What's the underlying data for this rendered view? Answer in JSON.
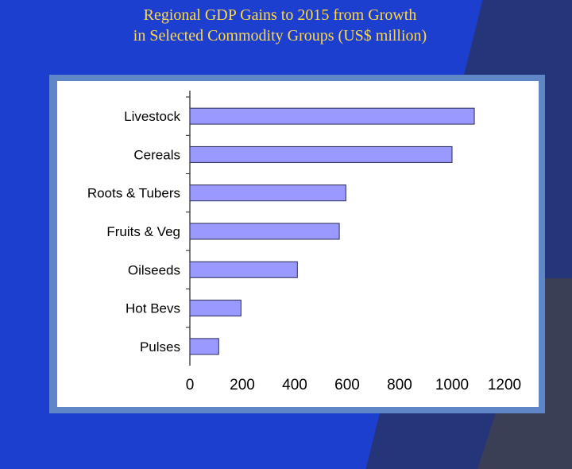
{
  "title": {
    "line1": "Regional GDP Gains to 2015 from Growth",
    "line2": "in Selected Commodity Groups (US$ million)"
  },
  "colors": {
    "background": "#1c3fd0",
    "title": "#ffd84a",
    "frame": "#5f86c6",
    "bar_fill": "#9999ff",
    "bar_stroke": "#2a2a5a"
  },
  "chart_data": {
    "type": "bar",
    "orientation": "horizontal",
    "categories": [
      "Livestock",
      "Cereals",
      "Roots & Tubers",
      "Fruits & Veg",
      "Oilseeds",
      "Hot Bevs",
      "Pulses"
    ],
    "values": [
      1085,
      1000,
      595,
      570,
      410,
      195,
      110
    ],
    "xlim": [
      0,
      1200
    ],
    "xticks": [
      0,
      200,
      400,
      600,
      800,
      1000,
      1200
    ],
    "xlabel": "",
    "ylabel": "",
    "grid": false,
    "legend": "none"
  }
}
